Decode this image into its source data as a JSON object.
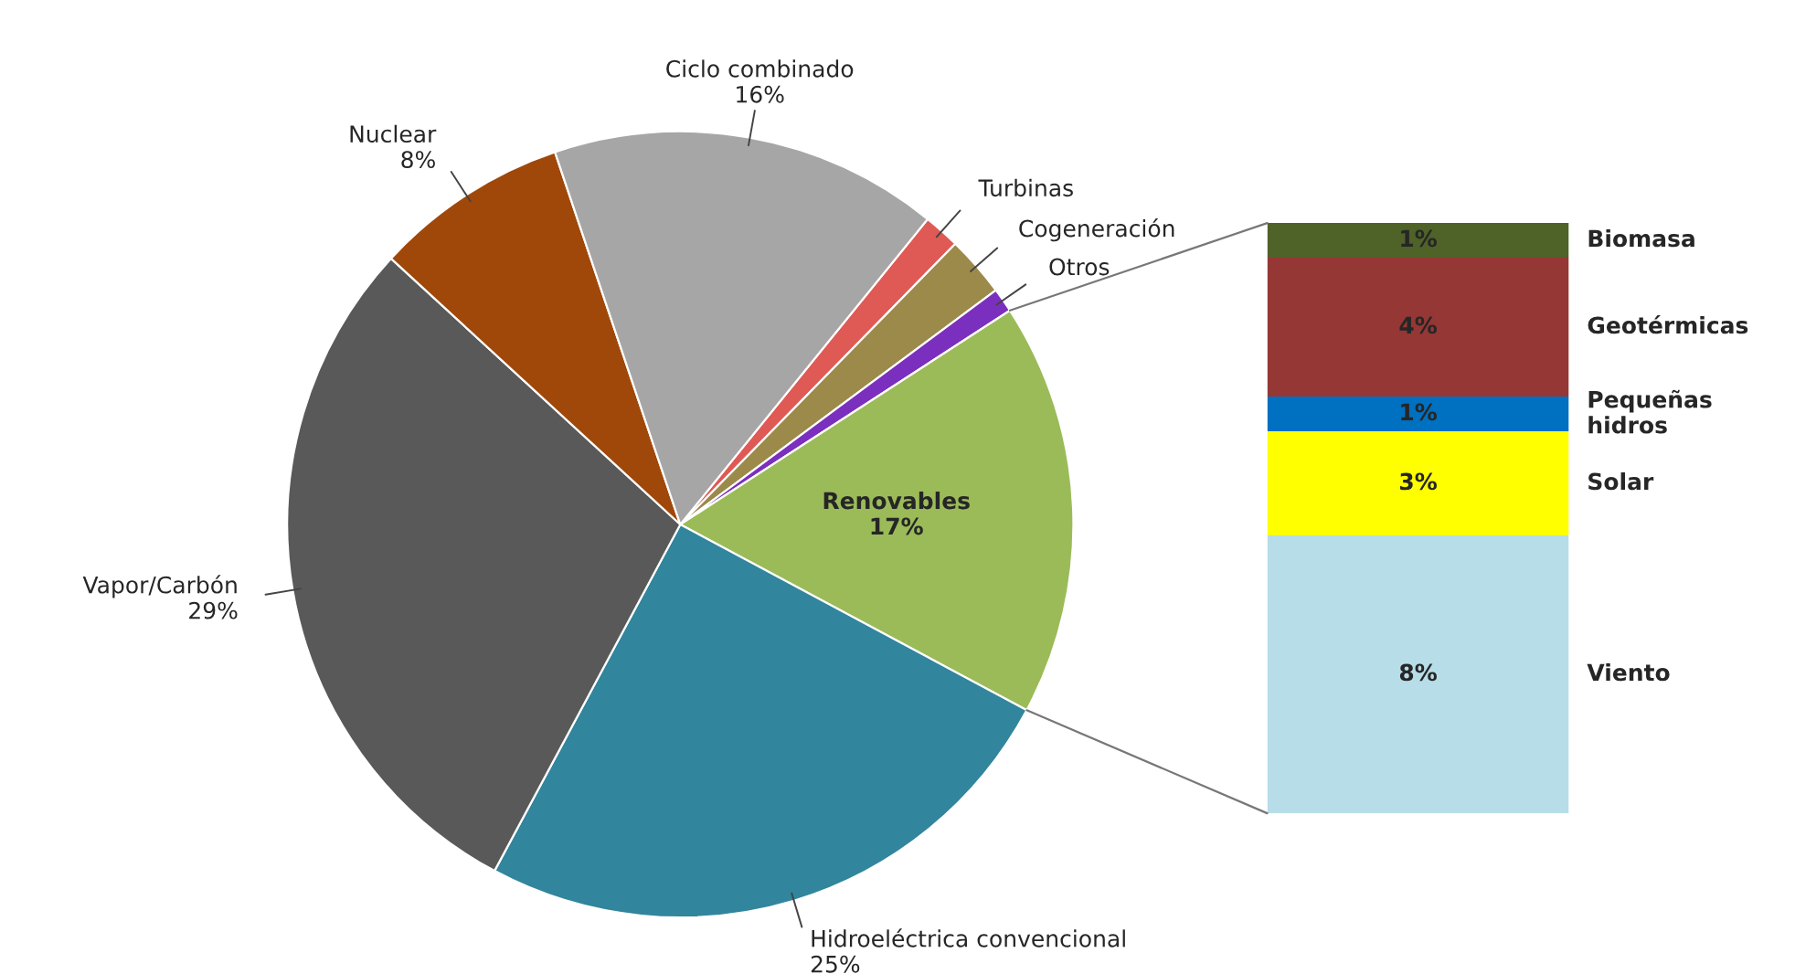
{
  "chart_data": [
    {
      "type": "pie",
      "categories": [
        "Turbinas",
        "Cogeneración",
        "Otros",
        "Renovables",
        "Hidroeléctrica convencional",
        "Vapor/Carbón",
        "Nuclear",
        "Ciclo combinado"
      ],
      "values": [
        1.5,
        2.5,
        1,
        17,
        25,
        29,
        8,
        16
      ],
      "value_labels": [
        null,
        null,
        null,
        "17%",
        "25%",
        "29%",
        "8%",
        "16%"
      ],
      "colors": [
        "#e05a55",
        "#9c8a4a",
        "#7b2fbe",
        "#9bbb59",
        "#31859c",
        "#595959",
        "#a0480a",
        "#a6a6a6"
      ]
    },
    {
      "type": "bar",
      "stacked": true,
      "categories": [
        null
      ],
      "series": [
        {
          "name": "Viento",
          "color": "#b7dde8",
          "values": [
            8
          ],
          "value_labels": [
            "8%"
          ]
        },
        {
          "name": "Solar",
          "color": "#ffff00",
          "values": [
            3
          ],
          "value_labels": [
            "3%"
          ]
        },
        {
          "name": "Pequeñas hidros",
          "color": "#0070c0",
          "values": [
            1
          ],
          "value_labels": [
            "1%"
          ]
        },
        {
          "name": "Geotérmicas",
          "color": "#953735",
          "values": [
            4
          ],
          "value_labels": [
            "4%"
          ]
        },
        {
          "name": "Biomasa",
          "color": "#4f6228",
          "values": [
            1
          ],
          "value_labels": [
            "1%"
          ]
        }
      ]
    }
  ]
}
